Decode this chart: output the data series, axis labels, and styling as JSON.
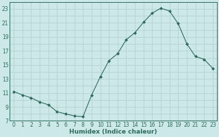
{
  "xlabel": "Humidex (Indice chaleur)",
  "ylabel": "",
  "x": [
    0,
    1,
    2,
    3,
    4,
    5,
    6,
    7,
    8,
    9,
    10,
    11,
    12,
    13,
    14,
    15,
    16,
    17,
    18,
    19,
    20,
    21,
    22,
    23
  ],
  "y": [
    11.2,
    10.7,
    10.3,
    9.7,
    9.3,
    8.3,
    8.0,
    7.7,
    7.6,
    10.7,
    13.3,
    15.6,
    16.6,
    18.6,
    19.6,
    21.1,
    22.4,
    23.1,
    22.7,
    20.9,
    18.0,
    16.2,
    15.8,
    14.5
  ],
  "line_color": "#2e6b5e",
  "marker": "D",
  "marker_size": 2.0,
  "bg_color": "#cce8e8",
  "grid_color": "#b8d4d4",
  "ylim": [
    7,
    24
  ],
  "yticks": [
    7,
    9,
    11,
    13,
    15,
    17,
    19,
    21,
    23
  ],
  "xlim": [
    -0.5,
    23.5
  ],
  "xticks": [
    0,
    1,
    2,
    3,
    4,
    5,
    6,
    7,
    8,
    9,
    10,
    11,
    12,
    13,
    14,
    15,
    16,
    17,
    18,
    19,
    20,
    21,
    22,
    23
  ],
  "tick_fontsize": 5.5,
  "label_fontsize": 6.5
}
